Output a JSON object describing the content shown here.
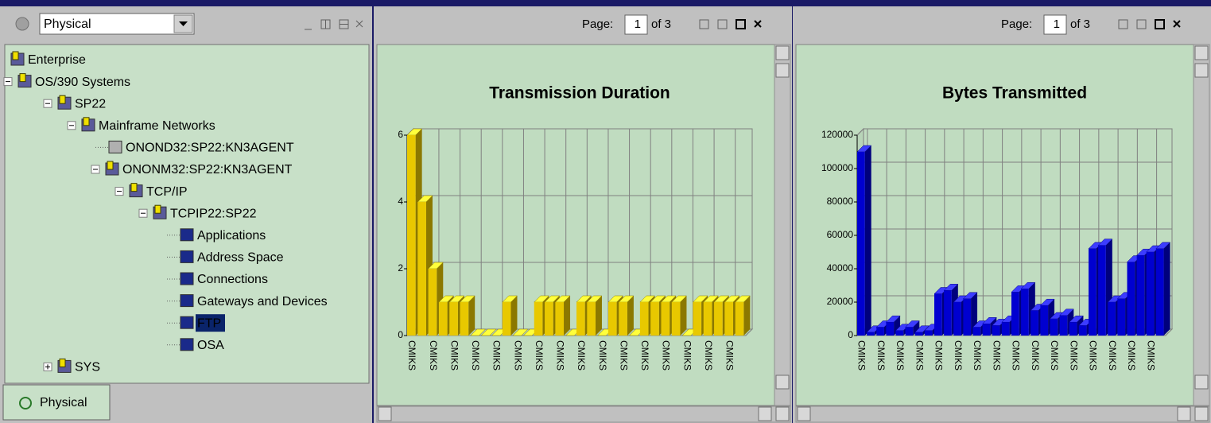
{
  "navigator": {
    "view": "Physical",
    "tab": "Physical",
    "tree": {
      "label": "Enterprise",
      "children": [
        {
          "label": "OS/390 Systems",
          "children": [
            {
              "label": "SP22",
              "children": [
                {
                  "label": "Mainframe Networks",
                  "children": [
                    {
                      "label": "ONOND32:SP22:KN3AGENT",
                      "disabled": true
                    },
                    {
                      "label": "ONONM32:SP22:KN3AGENT",
                      "children": [
                        {
                          "label": "TCP/IP",
                          "children": [
                            {
                              "label": "TCPIP22:SP22",
                              "children": [
                                {
                                  "label": "Applications"
                                },
                                {
                                  "label": "Address Space"
                                },
                                {
                                  "label": "Connections"
                                },
                                {
                                  "label": "Gateways and Devices"
                                },
                                {
                                  "label": "FTP",
                                  "selected": true
                                },
                                {
                                  "label": "OSA"
                                }
                              ]
                            }
                          ]
                        }
                      ]
                    }
                  ]
                }
              ]
            },
            {
              "label": "SYS",
              "collapsed": true
            }
          ]
        }
      ]
    }
  },
  "panels": [
    {
      "page_label": "Page:",
      "page": "1",
      "page_count": "of 3"
    },
    {
      "page_label": "Page:",
      "page": "1",
      "page_count": "of 3"
    }
  ],
  "chart_data": [
    {
      "type": "bar3d",
      "title": "Transmission Duration",
      "color": "#e8c800",
      "categories": [
        "CMIKS",
        null,
        "CMIKS",
        null,
        "CMIKS",
        null,
        "CMIKS",
        null,
        "CMIKS",
        null,
        "CMIKS",
        null,
        "CMIKS",
        null,
        "CMIKS",
        null,
        "CMIKS",
        null,
        "CMIKS",
        null,
        "CMIKS",
        null,
        "CMIKS",
        null,
        "CMIKS",
        null,
        "CMIKS",
        null,
        "CMIKS",
        null,
        "CMIKS",
        null
      ],
      "values": [
        6,
        4,
        2,
        1,
        1,
        1,
        0,
        0,
        0,
        1,
        0,
        0,
        1,
        1,
        1,
        0,
        1,
        1,
        0,
        1,
        1,
        0,
        1,
        1,
        1,
        1,
        0,
        1,
        1,
        1,
        1,
        1
      ],
      "ylim": [
        0,
        6
      ],
      "yticks": [
        0,
        2,
        4,
        6
      ],
      "grid": true
    },
    {
      "type": "bar3d",
      "title": "Bytes Transmitted",
      "color": "#0000d0",
      "categories": [
        "CMIKS",
        null,
        "CMIKS",
        null,
        "CMIKS",
        null,
        "CMIKS",
        null,
        "CMIKS",
        null,
        "CMIKS",
        null,
        "CMIKS",
        null,
        "CMIKS",
        null,
        "CMIKS",
        null,
        "CMIKS",
        null,
        "CMIKS",
        null,
        "CMIKS",
        null,
        "CMIKS",
        null,
        "CMIKS",
        null,
        "CMIKS",
        null,
        "CMIKS",
        null
      ],
      "values": [
        110000,
        2000,
        5000,
        8000,
        3000,
        5000,
        2000,
        3000,
        25000,
        27000,
        20000,
        22000,
        5000,
        7000,
        6000,
        8000,
        26000,
        28000,
        15000,
        18000,
        10000,
        12000,
        8000,
        6000,
        52000,
        54000,
        20000,
        22000,
        44000,
        48000,
        50000,
        52000
      ],
      "ylim": [
        0,
        120000
      ],
      "yticks": [
        0,
        20000,
        40000,
        60000,
        80000,
        100000,
        120000
      ],
      "grid": true
    }
  ]
}
